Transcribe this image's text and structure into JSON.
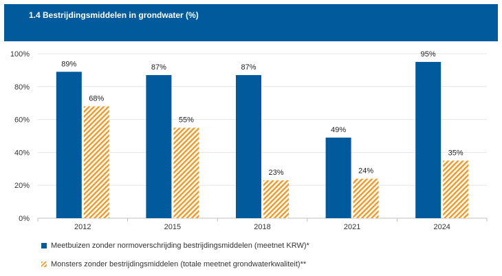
{
  "header": {
    "title": "1.4 Bestrijdingsmiddelen in grondwater (%)"
  },
  "colors": {
    "header_bg": "#005a9c",
    "series_1": "#005a9c",
    "series_2": "#f39a2a"
  },
  "chart_data": {
    "type": "bar",
    "title": "1.4 Bestrijdingsmiddelen in grondwater (%)",
    "categories": [
      "2012",
      "2015",
      "2018",
      "2021",
      "2024"
    ],
    "series": [
      {
        "name": "Meetbuizen zonder normoverschrijding bestrijdingsmiddelen (meetnet KRW)*",
        "values": [
          89,
          87,
          87,
          49,
          95
        ],
        "labels": [
          "89%",
          "87%",
          "87%",
          "49%",
          "95%"
        ],
        "fill": "solid"
      },
      {
        "name": "Monsters zonder bestrijdingsmiddelen (totale meetnet grondwaterkwaliteit)**",
        "values": [
          68,
          55,
          23,
          24,
          35
        ],
        "labels": [
          "68%",
          "55%",
          "23%",
          "24%",
          "35%"
        ],
        "fill": "hatched"
      }
    ],
    "ylim": [
      0,
      100
    ],
    "yticks": [
      "0%",
      "20%",
      "40%",
      "60%",
      "80%",
      "100%"
    ],
    "ytick_values": [
      0,
      20,
      40,
      60,
      80,
      100
    ],
    "grid": true,
    "legend_position": "bottom-left"
  }
}
